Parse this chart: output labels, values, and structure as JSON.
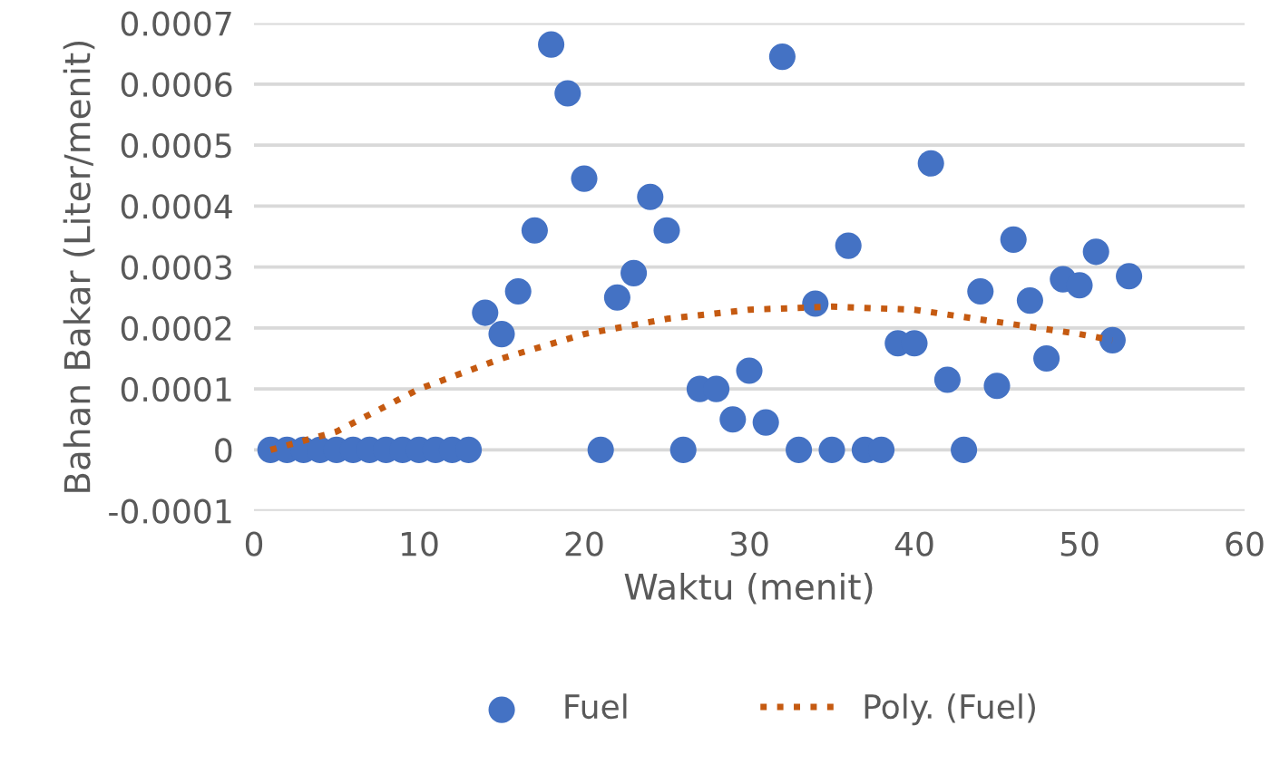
{
  "chart_data": {
    "type": "scatter",
    "xlabel": "Waktu (menit)",
    "ylabel": "Bahan Bakar (Liter/menit)",
    "xlim": [
      0,
      60
    ],
    "xticks": [
      0,
      10,
      20,
      30,
      40,
      50,
      60
    ],
    "ylim": [
      -0.0001,
      0.0007
    ],
    "yticks": [
      -0.0001,
      0,
      0.0001,
      0.0002,
      0.0003,
      0.0004,
      0.0005,
      0.0006,
      0.0007
    ],
    "grid": "y",
    "legend": "bottom",
    "series": [
      {
        "name": "Fuel",
        "color": "#4472c4",
        "marker": "circle",
        "x": [
          1,
          2,
          3,
          4,
          5,
          6,
          7,
          8,
          9,
          10,
          11,
          12,
          13,
          14,
          15,
          16,
          17,
          18,
          19,
          20,
          21,
          22,
          23,
          24,
          25,
          26,
          27,
          28,
          29,
          30,
          31,
          32,
          33,
          34,
          35,
          36,
          37,
          38,
          39,
          40,
          41,
          42,
          43,
          44,
          45,
          46,
          47,
          48,
          49,
          50,
          51,
          52,
          53
        ],
        "values": [
          0,
          0,
          0,
          0,
          0,
          0,
          0,
          0,
          0,
          0,
          0,
          0,
          0,
          0.000225,
          0.00019,
          0.00026,
          0.00036,
          0.000665,
          0.000585,
          0.000445,
          0,
          0.00025,
          0.00029,
          0.000415,
          0.00036,
          0,
          0.0001,
          0.0001,
          5e-05,
          0.00013,
          4.5e-05,
          0.000645,
          0,
          0.00024,
          0,
          0.000335,
          0,
          0,
          0.000175,
          0.000175,
          0.00047,
          0.000115,
          0,
          0.00026,
          0.000105,
          0.000345,
          0.000245,
          0.00015,
          0.00028,
          0.00027,
          0.000325,
          0.00018,
          0.000285
        ]
      },
      {
        "name": "Poly. (Fuel)",
        "color": "#c55a11",
        "type": "line",
        "line_style": "dotted",
        "x": [
          1,
          5,
          10,
          15,
          20,
          25,
          30,
          35,
          40,
          45,
          50,
          52
        ],
        "values": [
          0,
          3e-05,
          0.0001,
          0.00015,
          0.00019,
          0.000215,
          0.00023,
          0.000235,
          0.00023,
          0.00021,
          0.00019,
          0.00018
        ]
      }
    ]
  }
}
